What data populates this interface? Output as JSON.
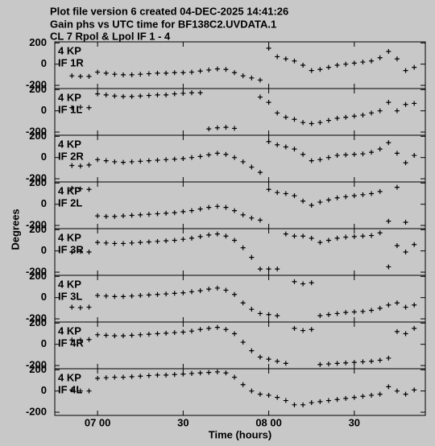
{
  "header": {
    "lines": [
      "Plot file version 6  created 04-DEC-2025 14:41:26",
      "Gain phs vs UTC time for BF138C2.UVDATA.1",
      "CL 7  Rpol & Lpol  IF 1 - 4"
    ]
  },
  "ylabel": "Degrees",
  "xlabel": "Time (hours)",
  "xlim": [
    6.75,
    8.915
  ],
  "xticks": [
    {
      "value": 7.0,
      "label": "07 00"
    },
    {
      "value": 7.5,
      "label": "30"
    },
    {
      "value": 8.0,
      "label": "08 00"
    },
    {
      "value": 8.5,
      "label": "30"
    }
  ],
  "x": [
    6.85,
    6.9,
    6.95,
    7.0,
    7.05,
    7.1,
    7.15,
    7.2,
    7.25,
    7.3,
    7.35,
    7.4,
    7.45,
    7.5,
    7.55,
    7.6,
    7.65,
    7.7,
    7.75,
    7.8,
    7.85,
    7.9,
    7.95,
    8.0,
    8.05,
    8.1,
    8.15,
    8.2,
    8.25,
    8.3,
    8.35,
    8.4,
    8.45,
    8.5,
    8.55,
    8.6,
    8.65,
    8.7,
    8.75,
    8.8,
    8.85
  ],
  "chart_data": [
    {
      "type": "scatter",
      "labels": [
        "4 KP",
        "IF 1R"
      ],
      "ylim": [
        -230,
        210
      ],
      "yticks": [
        -200,
        0,
        200
      ],
      "values": [
        -110,
        -115,
        -115,
        -75,
        -85,
        -95,
        -100,
        -100,
        -95,
        -90,
        -85,
        -85,
        -80,
        -80,
        -75,
        -65,
        -55,
        -45,
        -50,
        -80,
        -110,
        -130,
        -150,
        150,
        70,
        50,
        30,
        -10,
        -60,
        -50,
        -30,
        -10,
        0,
        10,
        20,
        30,
        60,
        120,
        50,
        -60,
        -30
      ]
    },
    {
      "type": "scatter",
      "labels": [
        "4 KP",
        "IF 1L"
      ],
      "ylim": [
        -230,
        210
      ],
      "yticks": [
        -200,
        0,
        200
      ],
      "values": [
        30,
        35,
        30,
        160,
        150,
        140,
        135,
        135,
        140,
        145,
        150,
        150,
        160,
        165,
        170,
        170,
        -170,
        -160,
        -155,
        -165,
        null,
        null,
        130,
        80,
        -20,
        -60,
        -80,
        -110,
        -120,
        -110,
        -90,
        -70,
        -60,
        -50,
        -40,
        -20,
        0,
        80,
        0,
        60,
        70
      ]
    },
    {
      "type": "scatter",
      "labels": [
        "4 KP",
        "IF 2R"
      ],
      "ylim": [
        -230,
        210
      ],
      "yticks": [
        -200,
        0,
        200
      ],
      "values": [
        -75,
        -80,
        -70,
        -20,
        -30,
        -40,
        -45,
        -40,
        -35,
        -30,
        -25,
        -20,
        -15,
        -10,
        0,
        10,
        25,
        40,
        30,
        0,
        -40,
        -90,
        -140,
        150,
        120,
        100,
        80,
        30,
        -30,
        -20,
        0,
        20,
        25,
        30,
        35,
        50,
        80,
        140,
        40,
        -50,
        20
      ]
    },
    {
      "type": "scatter",
      "labels": [
        "4 KP",
        "IF 2L"
      ],
      "ylim": [
        -230,
        210
      ],
      "yticks": [
        -200,
        0,
        200
      ],
      "values": [
        150,
        145,
        140,
        -110,
        -115,
        -115,
        -110,
        -105,
        -100,
        -95,
        -90,
        -85,
        -80,
        -70,
        -60,
        -45,
        -30,
        -20,
        -30,
        -60,
        -100,
        -130,
        -150,
        140,
        110,
        100,
        80,
        30,
        -10,
        20,
        40,
        60,
        70,
        80,
        90,
        100,
        120,
        -160,
        160,
        -170,
        null
      ]
    },
    {
      "type": "scatter",
      "labels": [
        "4 KP",
        "IF 3R"
      ],
      "ylim": [
        -230,
        210
      ],
      "yticks": [
        -200,
        0,
        200
      ],
      "values": [
        -10,
        -5,
        -10,
        80,
        75,
        70,
        70,
        75,
        80,
        85,
        90,
        95,
        100,
        110,
        120,
        135,
        150,
        160,
        140,
        100,
        30,
        -60,
        -170,
        -170,
        -170,
        160,
        140,
        140,
        120,
        80,
        100,
        120,
        130,
        135,
        140,
        145,
        170,
        -150,
        50,
        -10,
        60
      ]
    },
    {
      "type": "scatter",
      "labels": [
        "4 KP",
        "IF 3L"
      ],
      "ylim": [
        -230,
        210
      ],
      "yticks": [
        -200,
        0,
        200
      ],
      "values": [
        -90,
        -95,
        -90,
        20,
        15,
        10,
        10,
        15,
        20,
        25,
        30,
        35,
        40,
        45,
        55,
        65,
        80,
        90,
        70,
        30,
        -50,
        -110,
        -150,
        -160,
        -170,
        null,
        150,
        130,
        140,
        -170,
        -160,
        -150,
        -140,
        -135,
        -130,
        -120,
        -100,
        -70,
        -50,
        -90,
        -70
      ]
    },
    {
      "type": "scatter",
      "labels": [
        "4 KP",
        "IF 4R"
      ],
      "ylim": [
        -230,
        210
      ],
      "yticks": [
        -200,
        0,
        200
      ],
      "values": [
        40,
        40,
        45,
        90,
        85,
        80,
        80,
        85,
        90,
        95,
        100,
        105,
        110,
        115,
        125,
        140,
        150,
        160,
        140,
        100,
        20,
        -60,
        -120,
        -140,
        -160,
        -180,
        150,
        130,
        140,
        -190,
        -185,
        -180,
        -175,
        -170,
        -165,
        -160,
        -150,
        -130,
        120,
        100,
        150
      ]
    },
    {
      "type": "scatter",
      "labels": [
        "4 KP",
        "IF 4L"
      ],
      "ylim": [
        -230,
        210
      ],
      "yticks": [
        -200,
        0,
        200
      ],
      "values": [
        10,
        0,
        0,
        120,
        125,
        130,
        130,
        135,
        140,
        145,
        150,
        150,
        155,
        160,
        165,
        170,
        175,
        180,
        170,
        130,
        60,
        0,
        -30,
        -40,
        -60,
        -90,
        -130,
        -130,
        -110,
        -100,
        -90,
        -80,
        -70,
        -60,
        -50,
        -40,
        -30,
        40,
        0,
        -30,
        10
      ]
    }
  ]
}
